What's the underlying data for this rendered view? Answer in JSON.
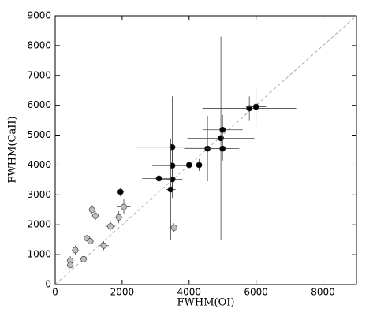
{
  "chart_data": {
    "type": "scatter",
    "x_label": "FWHM(OI)",
    "y_label": "FWHM(CaII)",
    "xlim": [
      0,
      9000
    ],
    "ylim": [
      0,
      9000
    ],
    "xticks": [
      0,
      2000,
      4000,
      6000,
      8000
    ],
    "yticks": [
      0,
      1000,
      2000,
      3000,
      4000,
      5000,
      6000,
      7000,
      8000,
      9000
    ],
    "series": [
      {
        "color": "#000000",
        "x": [
          1950,
          3500,
          3500,
          3100,
          3500,
          3450,
          4000,
          4300,
          4550,
          4950,
          5000,
          5000,
          5800,
          6000
        ],
        "y": [
          3100,
          4600,
          3980,
          3550,
          3520,
          3180,
          4000,
          4000,
          4550,
          4900,
          5180,
          4550,
          5900,
          5950
        ],
        "xerr": [
          100,
          1100,
          600,
          500,
          300,
          150,
          100,
          1600,
          700,
          1000,
          600,
          500,
          1400,
          300
        ],
        "yerr": [
          150,
          1700,
          500,
          200,
          300,
          1700,
          100,
          200,
          1100,
          3400,
          500,
          400,
          400,
          650
        ]
      },
      {
        "color": "#bdbdbd",
        "x": [
          450,
          450,
          600,
          850,
          950,
          1050,
          1100,
          1200,
          1450,
          1650,
          1900,
          2050,
          3550
        ],
        "y": [
          800,
          650,
          1150,
          850,
          1550,
          1450,
          2500,
          2300,
          1300,
          1950,
          2250,
          2600,
          1900
        ],
        "xerr": [
          100,
          100,
          100,
          100,
          100,
          100,
          100,
          100,
          150,
          150,
          150,
          200,
          100
        ],
        "yerr": [
          150,
          100,
          150,
          100,
          100,
          100,
          150,
          150,
          150,
          150,
          200,
          250,
          150
        ]
      }
    ]
  }
}
